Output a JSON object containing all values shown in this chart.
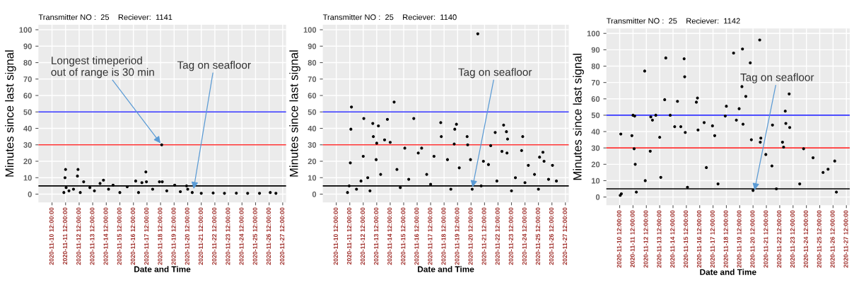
{
  "chart_data": [
    {
      "type": "scatter",
      "title": "Transmitter NO :  25    Reciever:  1141",
      "xlabel": "Date and Time",
      "ylabel": "Minutes since last signal",
      "xlim": [
        "2020-11-09T12:00",
        "2020-11-27T18:00"
      ],
      "xticks": [
        {
          "value": "2020-11-10T12:00",
          "label": "2020-11-10 12:00:00"
        },
        {
          "value": "2020-11-11T12:00",
          "label": "2020-11-11 12:00:00"
        },
        {
          "value": "2020-11-12T12:00",
          "label": "2020-11-12 12:00:00"
        },
        {
          "value": "2020-11-13T12:00",
          "label": "2020-11-13 12:00:00"
        },
        {
          "value": "2020-11-14T12:00",
          "label": "2020-11-14 12:00:00"
        },
        {
          "value": "2020-11-15T12:00",
          "label": "2020-11-15 12:00:00"
        },
        {
          "value": "2020-11-16T12:00",
          "label": "2020-11-16 12:00:00"
        },
        {
          "value": "2020-11-17T12:00",
          "label": "2020-11-17 12:00:00"
        },
        {
          "value": "2020-11-18T12:00",
          "label": "2020-11-18 12:00:00"
        },
        {
          "value": "2020-11-19T12:00",
          "label": "2020-11-19 12:00:00"
        },
        {
          "value": "2020-11-20T12:00",
          "label": "2020-11-20 12:00:00"
        },
        {
          "value": "2020-11-21T12:00",
          "label": "2020-11-21 12:00:00"
        },
        {
          "value": "2020-11-22T12:00",
          "label": "2020-11-22 12:00:00"
        },
        {
          "value": "2020-11-23T12:00",
          "label": "2020-11-23 12:00:00"
        },
        {
          "value": "2020-11-24T12:00",
          "label": "2020-11-24 12:00:00"
        },
        {
          "value": "2020-11-25T12:00",
          "label": "2020-11-25 12:00:00"
        },
        {
          "value": "2020-11-26T12:00",
          "label": "2020-11-26 12:00:00"
        },
        {
          "value": "2020-11-27T12:00",
          "label": "2020-11-27 12:00:00"
        }
      ],
      "ylim": [
        -5,
        103
      ],
      "yticks": [
        0,
        10,
        20,
        30,
        40,
        50,
        60,
        70,
        80,
        90,
        100
      ],
      "grid": true,
      "marker": "circle",
      "legend": false,
      "ref_lines": [
        {
          "axis": "y",
          "value": 50,
          "color": "#3333ff"
        },
        {
          "axis": "y",
          "value": 30,
          "color": "#ff3333"
        },
        {
          "axis": "y",
          "value": 5,
          "color": "#000000"
        }
      ],
      "annotations": [
        {
          "text": "Longest timeperiod\nout of range is 30 min",
          "x": "2020-11-18T14:00",
          "y": 30
        },
        {
          "text": "Tag on seafloor",
          "x": "2020-11-20T22:00",
          "y": 2
        }
      ],
      "series": [
        {
          "color": "#000000",
          "x": [
            "2020-11-11T09:00",
            "2020-11-11T11:00",
            "2020-11-11T12:00",
            "2020-11-11T13:00",
            "2020-11-11T18:00",
            "2020-11-12T02:00",
            "2020-11-12T09:00",
            "2020-11-12T10:00",
            "2020-11-12T14:00",
            "2020-11-12T20:00",
            "2020-11-13T07:00",
            "2020-11-13T15:00",
            "2020-11-14T01:00",
            "2020-11-14T07:00",
            "2020-11-14T16:00",
            "2020-11-15T00:00",
            "2020-11-15T12:00",
            "2020-11-16T01:00",
            "2020-11-16T16:00",
            "2020-11-16T21:00",
            "2020-11-17T03:00",
            "2020-11-17T10:00",
            "2020-11-17T11:00",
            "2020-11-17T22:00",
            "2020-11-18T10:00",
            "2020-11-18T14:00",
            "2020-11-18T15:00",
            "2020-11-18T23:00",
            "2020-11-19T13:00",
            "2020-11-19T23:00",
            "2020-11-20T10:00",
            "2020-11-20T12:00",
            "2020-11-20T20:00",
            "2020-11-21T12:00",
            "2020-11-22T09:00",
            "2020-11-23T05:00",
            "2020-11-24T02:00",
            "2020-11-24T22:00",
            "2020-11-25T19:00",
            "2020-11-26T14:00",
            "2020-11-27T00:00"
          ],
          "values": [
            1,
            10,
            15,
            4,
            2,
            3,
            11,
            15,
            1,
            7.5,
            4,
            2,
            6.5,
            8.5,
            3,
            5.5,
            1,
            4.5,
            8,
            1,
            7,
            13.5,
            7.5,
            3,
            7.5,
            30,
            7.5,
            2,
            5.5,
            1.5,
            5,
            3,
            1,
            0.5,
            0.7,
            0.5,
            0.6,
            0.5,
            0.5,
            1,
            0.5
          ]
        }
      ]
    },
    {
      "type": "scatter",
      "title": "Transmitter NO :  25    Reciever:  1140",
      "xlabel": "Date and Time",
      "ylabel": "Minutes since last signal",
      "xlim": [
        "2020-11-09T12:00",
        "2020-11-27T18:00"
      ],
      "xticks": [
        {
          "value": "2020-11-10T12:00",
          "label": "2020-11-10 12:00:00"
        },
        {
          "value": "2020-11-11T12:00",
          "label": "2020-11-11 12:00:00"
        },
        {
          "value": "2020-11-12T12:00",
          "label": "2020-11-12 12:00:00"
        },
        {
          "value": "2020-11-13T12:00",
          "label": "2020-11-13 12:00:00"
        },
        {
          "value": "2020-11-14T12:00",
          "label": "2020-11-14 12:00:00"
        },
        {
          "value": "2020-11-15T12:00",
          "label": "2020-11-15 12:00:00"
        },
        {
          "value": "2020-11-16T12:00",
          "label": "2020-11-16 12:00:00"
        },
        {
          "value": "2020-11-17T12:00",
          "label": "2020-11-17 12:00:00"
        },
        {
          "value": "2020-11-18T12:00",
          "label": "2020-11-18 12:00:00"
        },
        {
          "value": "2020-11-19T12:00",
          "label": "2020-11-19 12:00:00"
        },
        {
          "value": "2020-11-20T12:00",
          "label": "2020-11-20 12:00:00"
        },
        {
          "value": "2020-11-21T12:00",
          "label": "2020-11-21 12:00:00"
        },
        {
          "value": "2020-11-22T12:00",
          "label": "2020-11-22 12:00:00"
        },
        {
          "value": "2020-11-23T12:00",
          "label": "2020-11-23 12:00:00"
        },
        {
          "value": "2020-11-24T12:00",
          "label": "2020-11-24 12:00:00"
        },
        {
          "value": "2020-11-25T12:00",
          "label": "2020-11-25 12:00:00"
        },
        {
          "value": "2020-11-26T12:00",
          "label": "2020-11-26 12:00:00"
        },
        {
          "value": "2020-11-27T12:00",
          "label": "2020-11-27 12:00:00"
        }
      ],
      "ylim": [
        -5,
        103
      ],
      "yticks": [
        0,
        10,
        20,
        30,
        40,
        50,
        60,
        70,
        80,
        90,
        100
      ],
      "grid": true,
      "marker": "circle",
      "legend": false,
      "ref_lines": [
        {
          "axis": "y",
          "value": 50,
          "color": "#3333ff"
        },
        {
          "axis": "y",
          "value": 30,
          "color": "#ff3333"
        },
        {
          "axis": "y",
          "value": 5,
          "color": "#000000"
        }
      ],
      "annotations": [
        {
          "text": "Tag on seafloor",
          "x": "2020-11-20T14:00",
          "y": 3
        }
      ],
      "series": [
        {
          "color": "#000000",
          "x": [
            "2020-11-11T08:00",
            "2020-11-11T11:00",
            "2020-11-11T13:00",
            "2020-11-11T14:00",
            "2020-11-11T15:00",
            "2020-11-12T00:00",
            "2020-11-12T08:00",
            "2020-11-12T12:00",
            "2020-11-12T13:00",
            "2020-11-12T20:00",
            "2020-11-13T00:00",
            "2020-11-13T05:00",
            "2020-11-13T06:00",
            "2020-11-13T11:00",
            "2020-11-13T12:00",
            "2020-11-13T15:00",
            "2020-11-13T19:00",
            "2020-11-14T02:00",
            "2020-11-14T07:00",
            "2020-11-14T12:00",
            "2020-11-14T19:00",
            "2020-11-15T00:00",
            "2020-11-15T06:00",
            "2020-11-15T14:00",
            "2020-11-15T21:00",
            "2020-11-16T06:00",
            "2020-11-16T14:00",
            "2020-11-16T20:00",
            "2020-11-17T05:00",
            "2020-11-17T12:00",
            "2020-11-17T18:00",
            "2020-11-18T06:00",
            "2020-11-18T07:00",
            "2020-11-18T18:00",
            "2020-11-19T00:00",
            "2020-11-19T06:00",
            "2020-11-19T07:00",
            "2020-11-19T10:00",
            "2020-11-19T15:00",
            "2020-11-20T05:00",
            "2020-11-20T06:00",
            "2020-11-20T11:00",
            "2020-11-20T14:00",
            "2020-11-21T00:00",
            "2020-11-21T06:00",
            "2020-11-21T10:00",
            "2020-11-21T19:00",
            "2020-11-21T23:00",
            "2020-11-22T07:00",
            "2020-11-22T10:00",
            "2020-11-22T19:00",
            "2020-11-22T22:00",
            "2020-11-23T03:00",
            "2020-11-23T04:00",
            "2020-11-23T05:00",
            "2020-11-23T12:00",
            "2020-11-23T19:00",
            "2020-11-24T06:00",
            "2020-11-24T08:00",
            "2020-11-24T12:00",
            "2020-11-24T18:00",
            "2020-11-25T05:00",
            "2020-11-25T12:00",
            "2020-11-25T14:00",
            "2020-11-25T20:00",
            "2020-11-25T22:00",
            "2020-11-26T06:00",
            "2020-11-26T13:00",
            "2020-11-26T20:00"
          ],
          "values": [
            1,
            5,
            19,
            39.5,
            53,
            3,
            8,
            23,
            46,
            10,
            2,
            43,
            35,
            21,
            31,
            41.5,
            12,
            33,
            45.5,
            31.5,
            56,
            15,
            4,
            28,
            9,
            46,
            25,
            28,
            12,
            6,
            23,
            43.5,
            35,
            21,
            3,
            30.5,
            39.5,
            42.5,
            16,
            35,
            30,
            21,
            3,
            97.5,
            5,
            20,
            18,
            29.5,
            37.5,
            8,
            26,
            42,
            38,
            25,
            33.5,
            2,
            10,
            26.5,
            35,
            7,
            17.5,
            12,
            3,
            22.5,
            25.5,
            20,
            9,
            17.5,
            8
          ]
        }
      ]
    },
    {
      "type": "scatter",
      "title": "Transmitter NO :  25    Reciever:  1142",
      "xlabel": "Date and Time",
      "ylabel": "Minutes since last signal",
      "xlim": [
        "2020-11-09T12:00",
        "2020-11-27T18:00"
      ],
      "xticks": [
        {
          "value": "2020-11-10T12:00",
          "label": "2020-11-10 12:00:00"
        },
        {
          "value": "2020-11-11T12:00",
          "label": "2020-11-11 12:00:00"
        },
        {
          "value": "2020-11-12T12:00",
          "label": "2020-11-12 12:00:00"
        },
        {
          "value": "2020-11-13T12:00",
          "label": "2020-11-13 12:00:00"
        },
        {
          "value": "2020-11-14T12:00",
          "label": "2020-11-14 12:00:00"
        },
        {
          "value": "2020-11-15T12:00",
          "label": "2020-11-15 12:00:00"
        },
        {
          "value": "2020-11-16T12:00",
          "label": "2020-11-16 12:00:00"
        },
        {
          "value": "2020-11-17T12:00",
          "label": "2020-11-17 12:00:00"
        },
        {
          "value": "2020-11-18T12:00",
          "label": "2020-11-18 12:00:00"
        },
        {
          "value": "2020-11-19T12:00",
          "label": "2020-11-19 12:00:00"
        },
        {
          "value": "2020-11-20T12:00",
          "label": "2020-11-20 12:00:00"
        },
        {
          "value": "2020-11-21T12:00",
          "label": "2020-11-21 12:00:00"
        },
        {
          "value": "2020-11-22T12:00",
          "label": "2020-11-22 12:00:00"
        },
        {
          "value": "2020-11-23T12:00",
          "label": "2020-11-23 12:00:00"
        },
        {
          "value": "2020-11-24T12:00",
          "label": "2020-11-24 12:00:00"
        },
        {
          "value": "2020-11-25T12:00",
          "label": "2020-11-25 12:00:00"
        },
        {
          "value": "2020-11-26T12:00",
          "label": "2020-11-26 12:00:00"
        },
        {
          "value": "2020-11-27T12:00",
          "label": "2020-11-27 12:00:00"
        }
      ],
      "ylim": [
        -5,
        103
      ],
      "yticks": [
        0,
        10,
        20,
        30,
        40,
        50,
        60,
        70,
        80,
        90,
        100
      ],
      "grid": true,
      "marker": "circle",
      "legend": false,
      "ref_lines": [
        {
          "axis": "y",
          "value": 50,
          "color": "#3333ff"
        },
        {
          "axis": "y",
          "value": 30,
          "color": "#ff3333"
        },
        {
          "axis": "y",
          "value": 5,
          "color": "#000000"
        }
      ],
      "annotations": [
        {
          "text": "Tag on seafloor",
          "x": "2020-11-20T14:00",
          "y": 3
        }
      ],
      "series": [
        {
          "color": "#000000",
          "x": [
            "2020-11-10T13:00",
            "2020-11-10T14:00",
            "2020-11-10T15:00",
            "2020-11-11T10:00",
            "2020-11-11T12:00",
            "2020-11-11T14:00",
            "2020-11-11T15:00",
            "2020-11-11T16:00",
            "2020-11-11T18:00",
            "2020-11-12T09:00",
            "2020-11-12T10:00",
            "2020-11-12T19:00",
            "2020-11-12T20:00",
            "2020-11-12T23:00",
            "2020-11-13T05:00",
            "2020-11-13T12:00",
            "2020-11-13T14:00",
            "2020-11-13T21:00",
            "2020-11-13T23:00",
            "2020-11-14T07:00",
            "2020-11-14T15:00",
            "2020-11-14T20:00",
            "2020-11-15T02:00",
            "2020-11-15T08:00",
            "2020-11-15T09:00",
            "2020-11-15T10:00",
            "2020-11-15T14:00",
            "2020-11-16T06:00",
            "2020-11-16T08:00",
            "2020-11-16T09:00",
            "2020-11-16T20:00",
            "2020-11-17T00:00",
            "2020-11-17T11:00",
            "2020-11-17T15:00",
            "2020-11-17T21:00",
            "2020-11-18T10:00",
            "2020-11-18T12:00",
            "2020-11-19T01:00",
            "2020-11-19T06:00",
            "2020-11-19T11:00",
            "2020-11-19T16:00",
            "2020-11-19T17:00",
            "2020-11-19T18:00",
            "2020-11-19T23:00",
            "2020-11-20T07:00",
            "2020-11-20T09:00",
            "2020-11-20T12:00",
            "2020-11-21T00:00",
            "2020-11-21T01:00",
            "2020-11-21T02:00",
            "2020-11-21T11:00",
            "2020-11-21T22:00",
            "2020-11-21T23:00",
            "2020-11-22T06:00",
            "2020-11-22T17:00",
            "2020-11-22T19:00",
            "2020-11-22T22:00",
            "2020-11-22T23:00",
            "2020-11-23T05:00",
            "2020-11-23T06:00",
            "2020-11-24T00:00",
            "2020-11-24T07:00",
            "2020-11-25T00:00",
            "2020-11-25T18:00",
            "2020-11-26T03:00",
            "2020-11-26T15:00",
            "2020-11-26T18:00"
          ],
          "values": [
            1,
            38.5,
            2,
            37.5,
            50,
            29.5,
            49.5,
            20,
            3,
            77,
            10,
            28,
            49,
            47,
            50,
            36.5,
            12,
            59.5,
            85,
            50,
            43,
            58.5,
            43,
            84.5,
            73.5,
            39.5,
            6,
            58,
            60.5,
            41,
            45.5,
            18,
            43.5,
            37.5,
            8,
            49.5,
            55.5,
            88,
            47,
            54,
            67.5,
            90.5,
            44.5,
            61.5,
            82,
            35,
            4,
            96,
            33.5,
            36,
            26,
            19,
            44,
            5,
            33.5,
            30.5,
            52.5,
            45,
            63,
            42.5,
            8,
            29.5,
            24,
            15,
            17,
            22,
            3
          ]
        }
      ]
    }
  ]
}
